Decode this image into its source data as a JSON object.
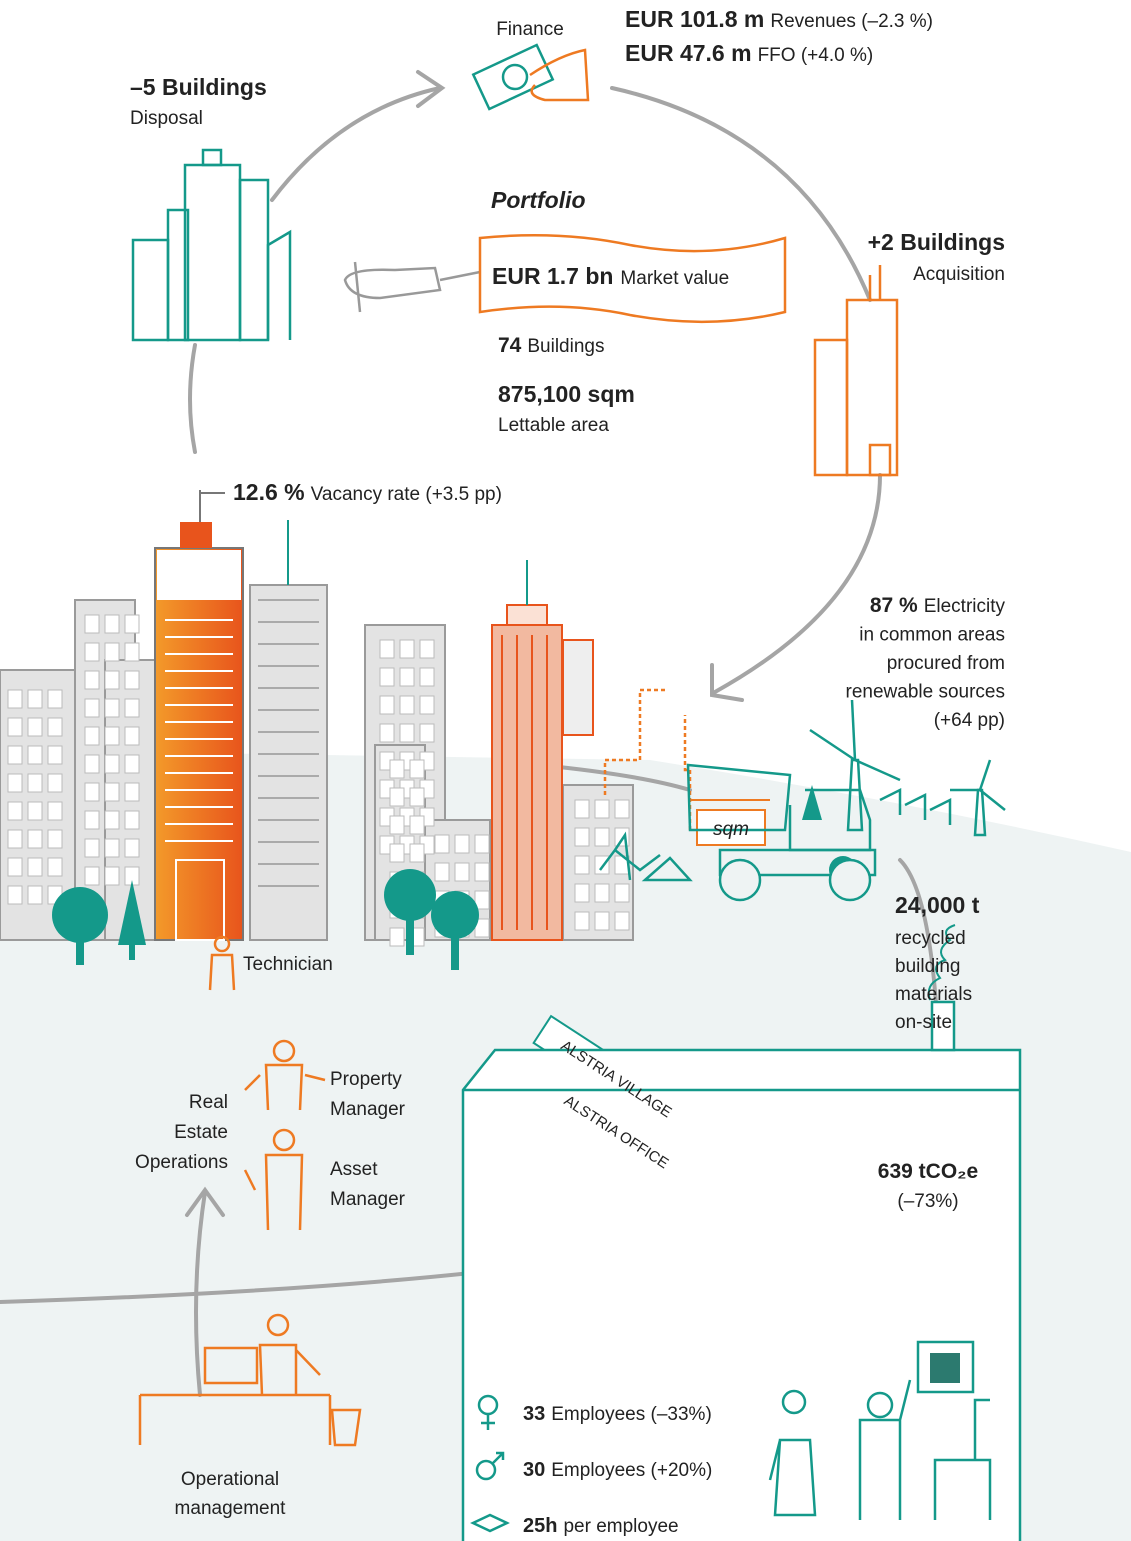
{
  "finance": {
    "label": "Finance",
    "revenues": {
      "value": "EUR 101.8 m",
      "label": "Revenues (–2.3 %)"
    },
    "ffo": {
      "value": "EUR 47.6 m",
      "label": "FFO (+4.0 %)"
    }
  },
  "disposal": {
    "value": "–5 Buildings",
    "label": "Disposal"
  },
  "portfolio": {
    "title": "Portfolio",
    "market_value": {
      "value": "EUR 1.7 bn",
      "label": "Market value"
    },
    "buildings": {
      "value": "74",
      "label": "Buildings"
    },
    "area": {
      "value": "875,100 sqm",
      "label": "Lettable area"
    }
  },
  "acquisition": {
    "value": "+2 Buildings",
    "label": "Acquisition"
  },
  "vacancy": {
    "value": "12.6 %",
    "label": "Vacancy rate (+3.5 pp)"
  },
  "electricity": {
    "value": "87 %",
    "lines": [
      "Electricity",
      "in common areas",
      "procured from",
      "renewable sources",
      "(+64 pp)"
    ]
  },
  "sign": "sqm",
  "recycling": {
    "value": "24,000 t",
    "lines": [
      "recycled",
      "building",
      "materials",
      "on-site"
    ]
  },
  "operations": {
    "title_lines": [
      "Real",
      "Estate",
      "Operations"
    ],
    "roles": [
      [
        "Technician"
      ],
      [
        "Property",
        "Manager"
      ],
      [
        "Asset",
        "Manager"
      ]
    ]
  },
  "signposts": [
    "ALSTRIA VILLAGE",
    "ALSTRIA OFFICE"
  ],
  "emissions": {
    "value": "639 tCO₂e",
    "label": "(–73%)"
  },
  "employees": [
    {
      "value": "33",
      "label": "Employees (–33%)"
    },
    {
      "value": "30",
      "label": "Employees (+20%)"
    },
    {
      "value": "25h",
      "label": "per employee"
    }
  ],
  "operational": [
    "Operational",
    "management"
  ]
}
